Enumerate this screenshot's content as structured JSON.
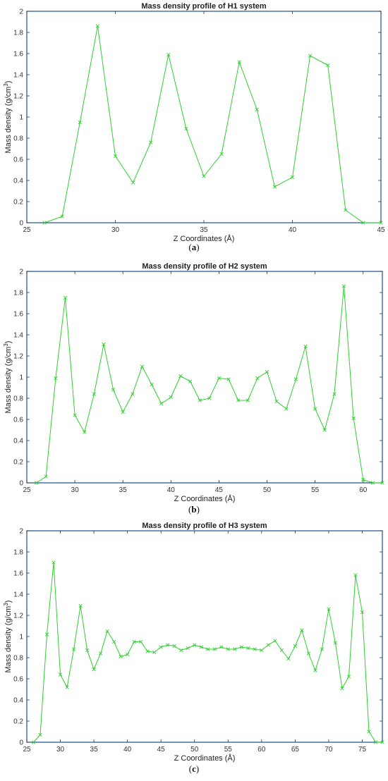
{
  "colors": {
    "series": "#2fcf2f",
    "axes": "#1f4f8f",
    "text": "#222222"
  },
  "chart_data": [
    {
      "type": "line",
      "caption_letter": "a",
      "title": "Mass density profile of H1 system",
      "xlabel": "Z Coordinates (Å)",
      "ylabel": "Mass density (g/cm",
      "ylabel_sup": "3",
      "ylabel_end": ")",
      "xlim": [
        25,
        45
      ],
      "ylim": [
        0,
        2
      ],
      "xticks": [
        25,
        30,
        35,
        40,
        45
      ],
      "yticks": [
        0,
        0.2,
        0.4,
        0.6,
        0.8,
        1,
        1.2,
        1.4,
        1.6,
        1.8,
        2
      ],
      "ytick_labels": [
        "0",
        "0.2",
        "0.4",
        "0.6",
        "0.8",
        "1",
        "1.2",
        "1.4",
        "1.6",
        "1.8",
        "2"
      ],
      "marker": "x",
      "series": [
        {
          "x": [
            26,
            27,
            28,
            29,
            30,
            31,
            32,
            33,
            34,
            35,
            36,
            37,
            38,
            39,
            40,
            41,
            42,
            43,
            44,
            45
          ],
          "y": [
            0.0,
            0.06,
            0.95,
            1.86,
            0.63,
            0.38,
            0.76,
            1.59,
            0.89,
            0.44,
            0.65,
            1.52,
            1.07,
            0.34,
            0.43,
            1.58,
            1.49,
            0.12,
            0.0,
            0.0
          ]
        }
      ]
    },
    {
      "type": "line",
      "caption_letter": "b",
      "title": "Mass density profile of H2 system",
      "xlabel": "Z Coordinates (Å)",
      "ylabel": "Mass density (g/cm",
      "ylabel_sup": "3",
      "ylabel_end": ")",
      "xlim": [
        25,
        62
      ],
      "ylim": [
        0,
        2
      ],
      "xticks": [
        25,
        30,
        35,
        40,
        45,
        50,
        55,
        60
      ],
      "yticks": [
        0,
        0.2,
        0.4,
        0.6,
        0.8,
        1,
        1.2,
        1.4,
        1.6,
        1.8,
        2
      ],
      "ytick_labels": [
        "0",
        "0.2",
        "0.4",
        "0.6",
        "0.8",
        "1",
        "1.2",
        "1.4",
        "1.6",
        "1.8",
        "2"
      ],
      "marker": "x",
      "series": [
        {
          "x": [
            26,
            27,
            28,
            29,
            30,
            31,
            32,
            33,
            34,
            35,
            36,
            37,
            38,
            39,
            40,
            41,
            42,
            43,
            44,
            45,
            46,
            47,
            48,
            49,
            50,
            51,
            52,
            53,
            54,
            55,
            56,
            57,
            58,
            59,
            60,
            61,
            62
          ],
          "y": [
            0.0,
            0.06,
            0.99,
            1.75,
            0.64,
            0.48,
            0.84,
            1.31,
            0.88,
            0.67,
            0.84,
            1.1,
            0.93,
            0.75,
            0.81,
            1.01,
            0.96,
            0.78,
            0.8,
            0.99,
            0.98,
            0.78,
            0.78,
            0.99,
            1.05,
            0.77,
            0.7,
            0.98,
            1.29,
            0.7,
            0.5,
            0.84,
            1.86,
            0.61,
            0.03,
            0.0,
            0.0
          ]
        }
      ]
    },
    {
      "type": "line",
      "caption_letter": "c",
      "title": "Mass density profile of H3 system",
      "xlabel": "Z Coordinates (Å)",
      "ylabel": "Mass density (g/cm",
      "ylabel_sup": "3",
      "ylabel_end": ")",
      "xlim": [
        25,
        78
      ],
      "ylim": [
        0,
        2
      ],
      "xticks": [
        25,
        30,
        35,
        40,
        45,
        50,
        55,
        60,
        65,
        70,
        75
      ],
      "yticks": [
        0,
        0.2,
        0.4,
        0.6,
        0.8,
        1,
        1.2,
        1.4,
        1.6,
        1.8,
        2
      ],
      "ytick_labels": [
        "0",
        "0.2",
        "0.4",
        "0.6",
        "0.8",
        "1",
        "1.2",
        "1.4",
        "1.6",
        "1.8",
        "2"
      ],
      "marker": "x",
      "series": [
        {
          "x": [
            26,
            27,
            28,
            29,
            30,
            31,
            32,
            33,
            34,
            35,
            36,
            37,
            38,
            39,
            40,
            41,
            42,
            43,
            44,
            45,
            46,
            47,
            48,
            49,
            50,
            51,
            52,
            53,
            54,
            55,
            56,
            57,
            58,
            59,
            60,
            61,
            62,
            63,
            64,
            65,
            66,
            67,
            68,
            69,
            70,
            71,
            72,
            73,
            74,
            75,
            76,
            77,
            78
          ],
          "y": [
            0.0,
            0.07,
            1.02,
            1.7,
            0.64,
            0.52,
            0.88,
            1.29,
            0.87,
            0.69,
            0.84,
            1.05,
            0.95,
            0.81,
            0.83,
            0.95,
            0.95,
            0.86,
            0.85,
            0.9,
            0.92,
            0.91,
            0.87,
            0.89,
            0.92,
            0.9,
            0.88,
            0.88,
            0.9,
            0.88,
            0.88,
            0.9,
            0.89,
            0.88,
            0.87,
            0.92,
            0.96,
            0.87,
            0.79,
            0.91,
            1.06,
            0.84,
            0.68,
            0.88,
            1.26,
            0.94,
            0.51,
            0.62,
            1.58,
            1.23,
            0.1,
            0.0,
            0.0
          ]
        }
      ]
    }
  ]
}
